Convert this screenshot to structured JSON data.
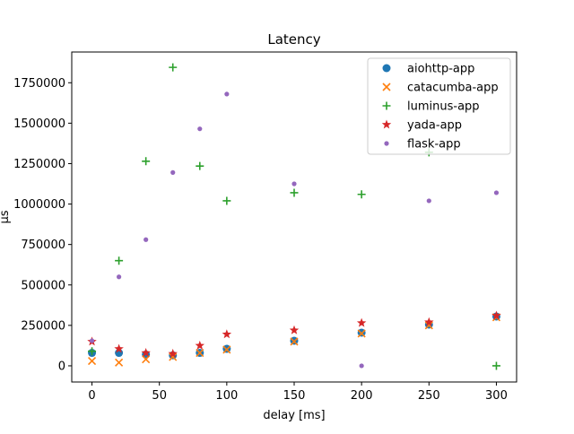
{
  "chart_data": {
    "type": "scatter",
    "title": "Latency",
    "xlabel": "delay [ms]",
    "ylabel": "μs",
    "xlim": [
      -15,
      315
    ],
    "ylim": [
      -100000,
      1940000
    ],
    "xticks": [
      0,
      50,
      100,
      150,
      200,
      250,
      300
    ],
    "yticks": [
      0,
      250000,
      500000,
      750000,
      1000000,
      1250000,
      1500000,
      1750000
    ],
    "grid": false,
    "legend_position": "top-right",
    "series": [
      {
        "name": "aiohttp-app",
        "marker": "circle",
        "color": "#1f77b4",
        "points": [
          [
            0,
            80000
          ],
          [
            20,
            80000
          ],
          [
            40,
            70000
          ],
          [
            60,
            65000
          ],
          [
            80,
            80000
          ],
          [
            100,
            105000
          ],
          [
            150,
            155000
          ],
          [
            200,
            205000
          ],
          [
            250,
            255000
          ],
          [
            300,
            305000
          ]
        ]
      },
      {
        "name": "catacumba-app",
        "marker": "x",
        "color": "#ff7f0e",
        "points": [
          [
            0,
            30000
          ],
          [
            20,
            20000
          ],
          [
            40,
            40000
          ],
          [
            60,
            55000
          ],
          [
            80,
            80000
          ],
          [
            100,
            100000
          ],
          [
            150,
            150000
          ],
          [
            200,
            200000
          ],
          [
            250,
            250000
          ],
          [
            300,
            300000
          ]
        ]
      },
      {
        "name": "luminus-app",
        "marker": "plus",
        "color": "#2ca02c",
        "points": [
          [
            0,
            90000
          ],
          [
            20,
            650000
          ],
          [
            40,
            1265000
          ],
          [
            60,
            1845000
          ],
          [
            80,
            1235000
          ],
          [
            100,
            1020000
          ],
          [
            150,
            1070000
          ],
          [
            200,
            1060000
          ],
          [
            250,
            1320000
          ],
          [
            300,
            0
          ]
        ]
      },
      {
        "name": "yada-app",
        "marker": "star",
        "color": "#d62728",
        "points": [
          [
            0,
            150000
          ],
          [
            20,
            105000
          ],
          [
            40,
            80000
          ],
          [
            60,
            75000
          ],
          [
            80,
            125000
          ],
          [
            100,
            195000
          ],
          [
            150,
            220000
          ],
          [
            200,
            265000
          ],
          [
            250,
            270000
          ],
          [
            300,
            310000
          ]
        ]
      },
      {
        "name": "flask-app",
        "marker": "dot",
        "color": "#9467bd",
        "points": [
          [
            0,
            155000
          ],
          [
            20,
            550000
          ],
          [
            40,
            780000
          ],
          [
            60,
            1195000
          ],
          [
            80,
            1465000
          ],
          [
            100,
            1680000
          ],
          [
            150,
            1125000
          ],
          [
            200,
            0
          ],
          [
            250,
            1020000
          ],
          [
            300,
            1070000
          ]
        ]
      }
    ]
  }
}
